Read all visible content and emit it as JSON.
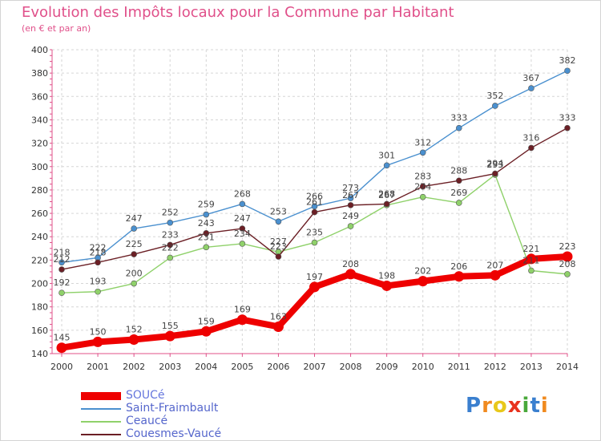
{
  "title": "Evolution des Impôts locaux pour la Commune par Habitant",
  "subtitle": "(en € et par an)",
  "brand": {
    "letters": [
      "P",
      "r",
      "o",
      "x",
      "i",
      "t",
      "i"
    ],
    "colors": [
      "#3a7fcf",
      "#f08a1f",
      "#e8c81a",
      "#e8321e",
      "#49a83a",
      "#3a7fcf",
      "#f08a1f"
    ]
  },
  "chart_data": {
    "type": "line",
    "x": [
      "2000",
      "2001",
      "2002",
      "2003",
      "2004",
      "2005",
      "2006",
      "2007",
      "2008",
      "2009",
      "2010",
      "2011",
      "2012",
      "2013",
      "2014"
    ],
    "ylim": [
      140,
      400
    ],
    "yticks": [
      "140",
      "160",
      "180",
      "200",
      "220",
      "240",
      "260",
      "280",
      "300",
      "320",
      "340",
      "360",
      "380",
      "400"
    ],
    "grid": true,
    "legend_position": "bottom-left",
    "series": [
      {
        "name": "Saint-Fraimbault",
        "color": "#4a90cf",
        "values": [
          218,
          222,
          247,
          252,
          259,
          268,
          253,
          266,
          273,
          301,
          312,
          333,
          352,
          367,
          382
        ]
      },
      {
        "name": "Ceaucé",
        "color": "#8fd16a",
        "values": [
          192,
          193,
          200,
          222,
          231,
          234,
          227,
          235,
          249,
          267,
          274,
          269,
          293,
          211,
          208
        ]
      },
      {
        "name": "Couesmes-Vaucé",
        "color": "#6b1f25",
        "values": [
          212,
          218,
          225,
          233,
          243,
          247,
          223,
          261,
          267,
          268,
          283,
          288,
          294,
          316,
          333
        ]
      },
      {
        "name": "SOUCé",
        "color": "#ee0000",
        "values": [
          145,
          150,
          152,
          155,
          159,
          169,
          163,
          197,
          208,
          198,
          202,
          206,
          207,
          221,
          223
        ]
      }
    ]
  }
}
